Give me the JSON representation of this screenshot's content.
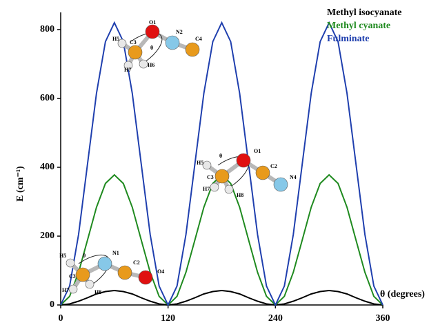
{
  "chart_data": {
    "type": "line",
    "y_label": "E (cm⁻¹)",
    "x_label": "θ (degrees)",
    "x": [
      0,
      10,
      20,
      30,
      40,
      50,
      60,
      70,
      80,
      90,
      100,
      110,
      120,
      130,
      140,
      150,
      160,
      170,
      180,
      190,
      200,
      210,
      220,
      230,
      240,
      250,
      260,
      270,
      280,
      290,
      300,
      310,
      320,
      330,
      340,
      350,
      360
    ],
    "series": [
      {
        "name": "Methyl isocyanate",
        "color": "#000000",
        "values": [
          0,
          3,
          11,
          21,
          32,
          39,
          42,
          39,
          32,
          21,
          11,
          3,
          0,
          3,
          11,
          21,
          32,
          39,
          42,
          39,
          32,
          21,
          11,
          3,
          0,
          3,
          11,
          21,
          32,
          39,
          42,
          39,
          32,
          21,
          11,
          3,
          0
        ]
      },
      {
        "name": "Methyl cyanate",
        "color": "#1f8a1f",
        "values": [
          0,
          25,
          95,
          189,
          284,
          353,
          378,
          353,
          284,
          189,
          95,
          25,
          0,
          25,
          95,
          189,
          284,
          353,
          378,
          353,
          284,
          189,
          95,
          25,
          0,
          25,
          95,
          189,
          284,
          353,
          378,
          353,
          284,
          189,
          95,
          25,
          0
        ]
      },
      {
        "name": "Fulminate",
        "color": "#1f3fae",
        "values": [
          0,
          55,
          205,
          410,
          615,
          765,
          820,
          765,
          615,
          410,
          205,
          55,
          0,
          55,
          205,
          410,
          615,
          765,
          820,
          765,
          615,
          410,
          205,
          55,
          0,
          55,
          205,
          410,
          615,
          765,
          820,
          765,
          615,
          410,
          205,
          55,
          0
        ]
      }
    ],
    "xlim": [
      0,
      360
    ],
    "xticks": [
      0,
      120,
      240,
      360
    ],
    "ylim": [
      0,
      850
    ],
    "yticks": [
      0,
      200,
      400,
      600,
      800
    ],
    "legend": "top-right",
    "annotations": [
      [
        "H5",
        "C3",
        "θ",
        "O1",
        "N2",
        "C4",
        "H7",
        "H6"
      ],
      [
        "H5",
        "θ",
        "O1",
        "C2",
        "N4",
        "C3",
        "H7",
        "H8"
      ],
      [
        "H5",
        "θ",
        "N1",
        "C2",
        "O4",
        "C3",
        "H7",
        "H8"
      ]
    ]
  }
}
